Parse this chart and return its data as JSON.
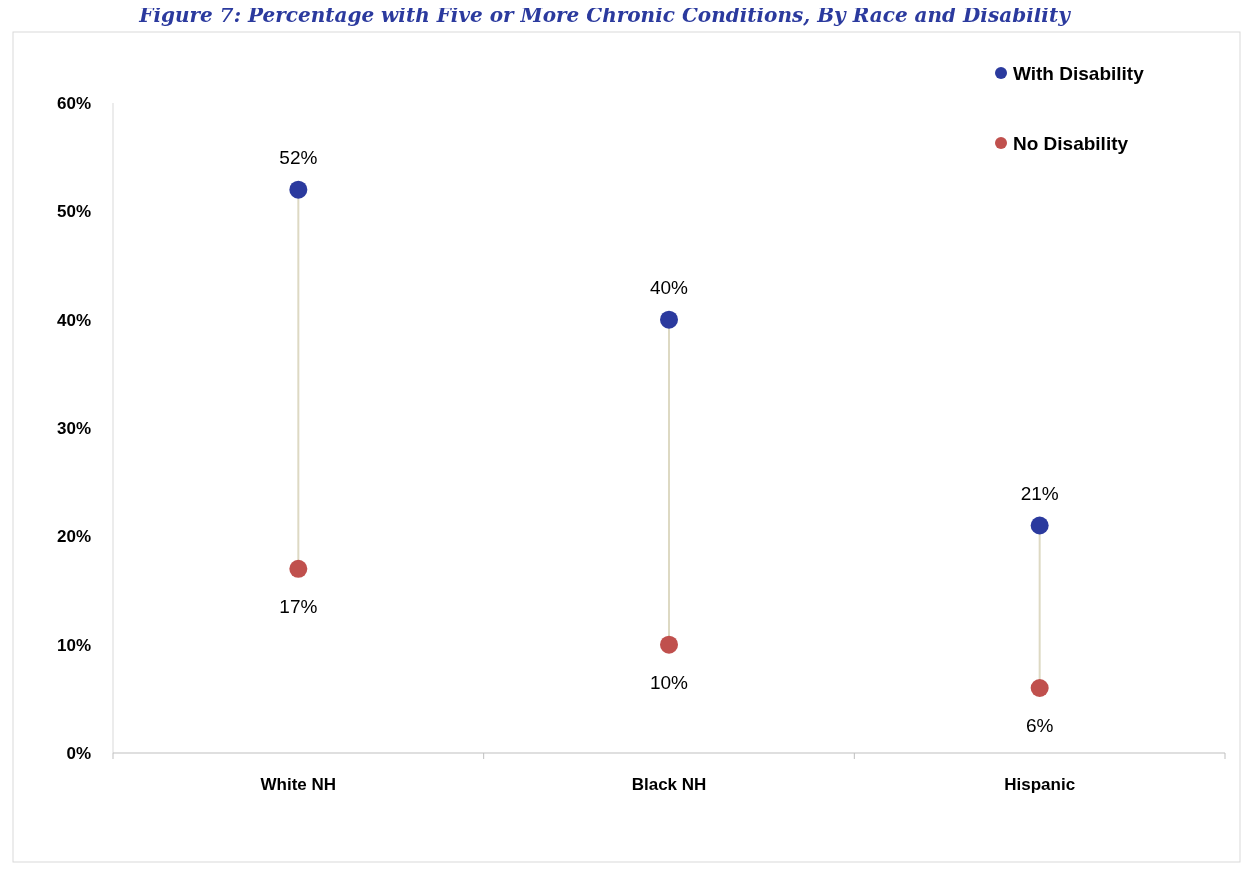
{
  "chart_data": {
    "type": "scatter",
    "title": "Figure 7: Percentage with Five or More Chronic Conditions, By Race and Disability",
    "categories": [
      "White NH",
      "Black NH",
      "Hispanic"
    ],
    "series": [
      {
        "name": "With Disability",
        "color": "#2b3a9e",
        "values": [
          52,
          40,
          21
        ],
        "value_labels": [
          "52%",
          "40%",
          "21%"
        ]
      },
      {
        "name": "No Disability",
        "color": "#c0504d",
        "values": [
          17,
          10,
          6
        ],
        "value_labels": [
          "17%",
          "10%",
          "6%"
        ]
      }
    ],
    "ylim": [
      0,
      60
    ],
    "yticks": [
      {
        "value": 0,
        "label": "0%"
      },
      {
        "value": 10,
        "label": "10%"
      },
      {
        "value": 20,
        "label": "20%"
      },
      {
        "value": 30,
        "label": "30%"
      },
      {
        "value": 40,
        "label": "40%"
      },
      {
        "value": 50,
        "label": "50%"
      },
      {
        "value": 60,
        "label": "60%"
      }
    ],
    "legend": "top right",
    "marker": "circle",
    "grid": false
  }
}
